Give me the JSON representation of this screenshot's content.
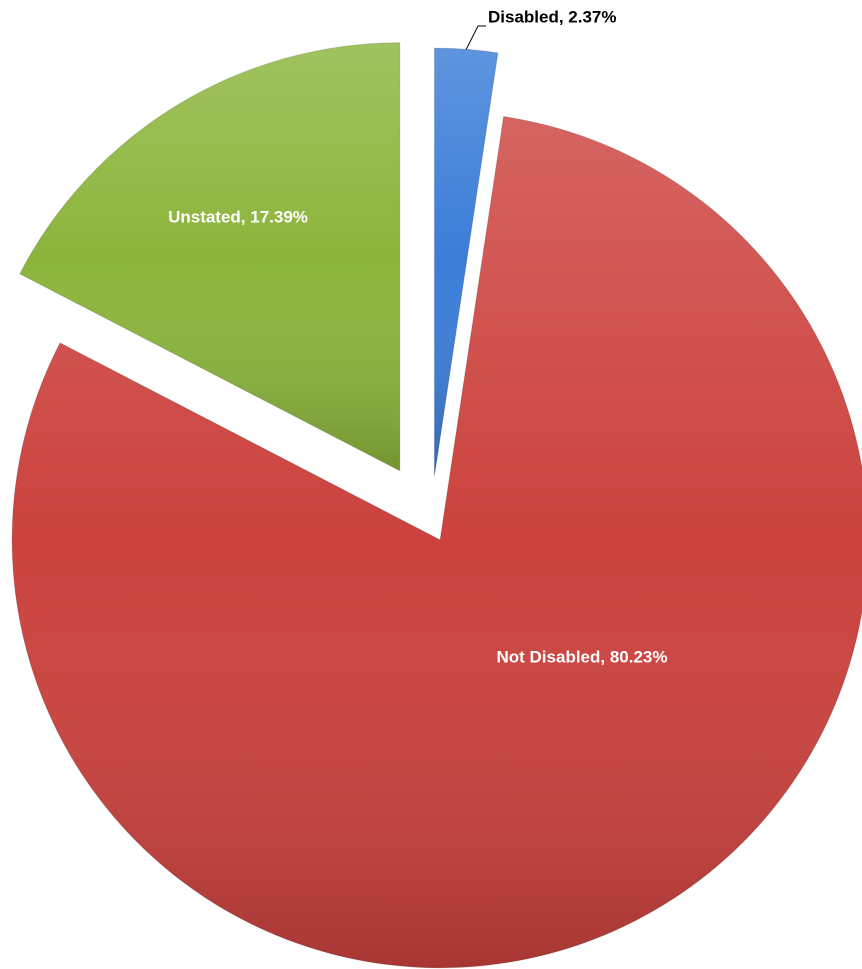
{
  "chart_data": {
    "type": "pie",
    "categories": [
      "Disabled",
      "Not Disabled",
      "Unstated"
    ],
    "values": [
      2.37,
      80.23,
      17.39
    ],
    "value_labels": [
      "Disabled, 2.37%",
      "Not Disabled, 80.23%",
      "Unstated, 17.39%"
    ],
    "colors": [
      "#3b7dd8",
      "#cc423e",
      "#8cb53c"
    ]
  }
}
